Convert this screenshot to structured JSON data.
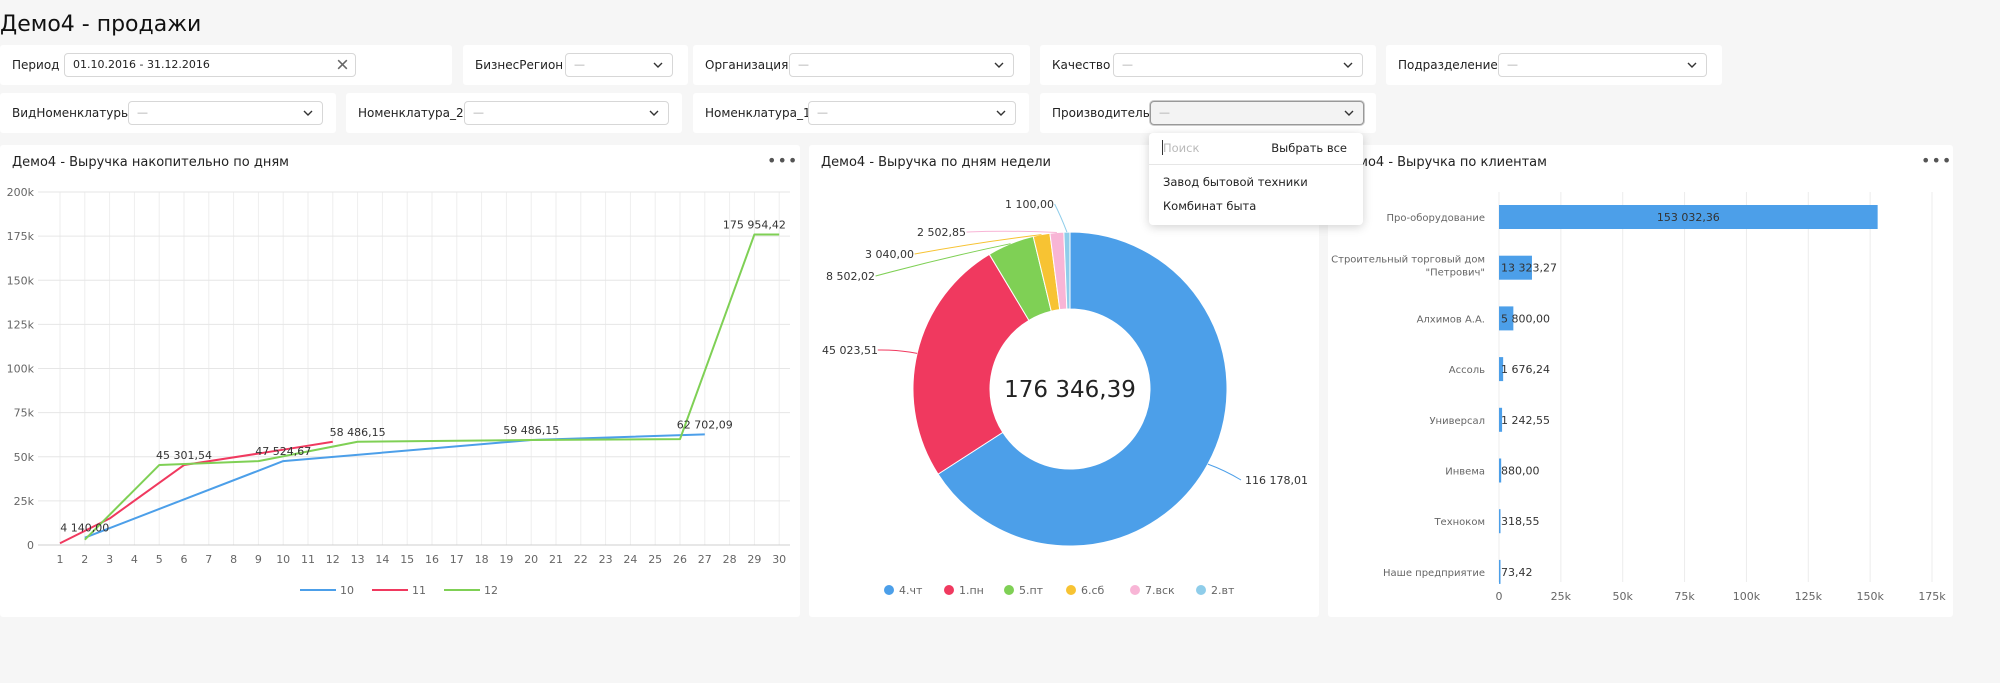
{
  "page": {
    "title": "Демо4 - продажи"
  },
  "filters": {
    "period": {
      "label": "Период",
      "value": "01.10.2016 - 31.12.2016"
    },
    "business_region": {
      "label": "БизнесРегион",
      "value": "—"
    },
    "organization": {
      "label": "Организация",
      "value": "—"
    },
    "quality": {
      "label": "Качество",
      "value": "—"
    },
    "division": {
      "label": "Подразделение",
      "value": "—"
    },
    "nomenclature_type": {
      "label": "ВидНоменклатуры",
      "value": "—"
    },
    "nomenclature_2": {
      "label": "Номенклатура_2",
      "value": "—"
    },
    "nomenclature_1": {
      "label": "Номенклатура_1",
      "value": "—"
    },
    "manufacturer": {
      "label": "Производитель",
      "value": "—"
    }
  },
  "dropdown": {
    "search_placeholder": "Поиск",
    "select_all": "Выбрать все",
    "options": [
      "Завод бытовой техники",
      "Комбинат быта"
    ]
  },
  "panels": {
    "line": {
      "title": "Демо4 - Выручка накопительно по дням"
    },
    "donut": {
      "title": "Демо4 - Выручка по дням недели"
    },
    "bars": {
      "title": "Демо4 - Выручка по клиентам"
    }
  },
  "icons": {
    "more": "more-dots-icon",
    "chevron": "chevron-down-icon",
    "clear": "close-icon"
  },
  "chart_data": [
    {
      "type": "line",
      "title": "Демо4 - Выручка накопительно по дням",
      "x": [
        1,
        2,
        3,
        4,
        5,
        6,
        7,
        8,
        9,
        10,
        11,
        12,
        13,
        14,
        15,
        16,
        17,
        18,
        19,
        20,
        21,
        22,
        23,
        24,
        25,
        26,
        27,
        28,
        29,
        30
      ],
      "x_ticks": [
        "1",
        "2",
        "3",
        "4",
        "5",
        "6",
        "7",
        "8",
        "9",
        "10",
        "11",
        "12",
        "13",
        "14",
        "15",
        "16",
        "17",
        "18",
        "19",
        "20",
        "21",
        "22",
        "23",
        "24",
        "25",
        "26",
        "27",
        "28",
        "29",
        "30"
      ],
      "y_ticks": [
        "0",
        "25k",
        "50k",
        "75k",
        "100k",
        "125k",
        "150k",
        "175k",
        "200k"
      ],
      "ylim": [
        0,
        200000
      ],
      "series": [
        {
          "name": "10",
          "color": "#4c9fe9",
          "points": [
            [
              2,
              4140
            ],
            [
              10,
              47525
            ],
            [
              20,
              59486
            ],
            [
              27,
              62702
            ]
          ]
        },
        {
          "name": "11",
          "color": "#f0395f",
          "points": [
            [
              1,
              1000
            ],
            [
              3,
              15000
            ],
            [
              6,
              45302
            ],
            [
              10,
              54000
            ],
            [
              12,
              58486
            ]
          ]
        },
        {
          "name": "12",
          "color": "#7fd055",
          "points": [
            [
              2,
              3000
            ],
            [
              5,
              45302
            ],
            [
              9,
              47525
            ],
            [
              13,
              58486
            ],
            [
              20,
              59486
            ],
            [
              26,
              60000
            ],
            [
              29,
              175954
            ],
            [
              30,
              175954
            ]
          ]
        }
      ],
      "data_labels": [
        {
          "x": 2,
          "y": 4140,
          "text": "4 140,00"
        },
        {
          "x": 6,
          "y": 45302,
          "text": "45 301,54"
        },
        {
          "x": 10,
          "y": 47525,
          "text": "47 524,67"
        },
        {
          "x": 13,
          "y": 58486,
          "text": "58 486,15"
        },
        {
          "x": 20,
          "y": 59486,
          "text": "59 486,15"
        },
        {
          "x": 27,
          "y": 62702,
          "text": "62 702,09"
        },
        {
          "x": 29,
          "y": 175954,
          "text": "175 954,42"
        }
      ],
      "legend": [
        "10",
        "11",
        "12"
      ],
      "legend_position": "bottom"
    },
    {
      "type": "pie",
      "title": "Демо4 - Выручка по дням недели",
      "total_label": "176 346,39",
      "slices": [
        {
          "name": "4.чт",
          "value": 116178.01,
          "label": "116 178,01",
          "color": "#4c9fe9"
        },
        {
          "name": "1.пн",
          "value": 45023.51,
          "label": "45 023,51",
          "color": "#f0395f"
        },
        {
          "name": "5.пт",
          "value": 8502.02,
          "label": "8 502,02",
          "color": "#7fd055"
        },
        {
          "name": "6.сб",
          "value": 3040.0,
          "label": "3 040,00",
          "color": "#f7c333"
        },
        {
          "name": "7.вск",
          "value": 2502.85,
          "label": "2 502,85",
          "color": "#f8b5d6"
        },
        {
          "name": "2.вт",
          "value": 1100.0,
          "label": "1 100,00",
          "color": "#8fcdea"
        }
      ],
      "legend_position": "bottom"
    },
    {
      "type": "bar",
      "orientation": "horizontal",
      "title": "Демо4 - Выручка по клиентам",
      "categories": [
        "Про-оборудование",
        "Строительный торговый дом \"Петрович\"",
        "Алхимов А.А.",
        "Ассоль",
        "Универсал",
        "Инвема",
        "Техноком",
        "Наше предприятие"
      ],
      "values": [
        153032.36,
        13323.27,
        5800.0,
        1676.24,
        1242.55,
        880.0,
        318.55,
        73.42
      ],
      "value_labels": [
        "153 032,36",
        "13 323,27",
        "5 800,00",
        "1 676,24",
        "1 242,55",
        "880,00",
        "318,55",
        "73,42"
      ],
      "x_ticks": [
        "0",
        "25k",
        "50k",
        "75k",
        "100k",
        "125k",
        "150k",
        "175k"
      ],
      "xlim": [
        0,
        175000
      ],
      "color": "#4c9fe9"
    }
  ]
}
